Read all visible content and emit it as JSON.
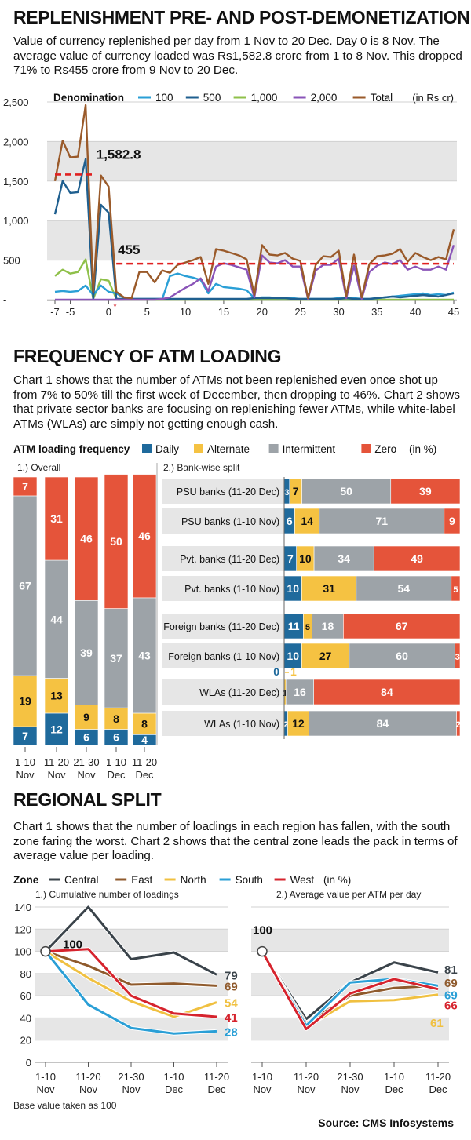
{
  "section1": {
    "title": "REPLENISHMENT PRE- AND POST-DEMONETIZATION",
    "description": "Value of currency replenished per day from 1 Nov to 20 Dec. Day 0 is 8 Nov. The average value of currency loaded was Rs1,582.8 crore from 1 to 8 Nov. This dropped 71% to Rs455 crore from 9 Nov to 20 Dec."
  },
  "section2": {
    "title": "FREQUENCY OF ATM LOADING",
    "description": "Chart 1 shows that the number of ATMs not been replenished even once shot up from 7% to 50% till the first week of December, then dropping to 46%. Chart 2 shows that private sector banks are focusing on replenishing fewer ATMs, while white-label ATMs (WLAs) are simply not getting enough cash."
  },
  "section3": {
    "title": "REGIONAL SPLIT",
    "description": "Chart 1 shows that the number of loadings in each region has fallen, with the south zone faring the worst.  Chart 2 shows that the central zone leads the pack in terms of average value per loading."
  },
  "source": "Source: CMS Infosystems",
  "colors": {
    "d100": "#2a9fd6",
    "d500": "#1f5f8f",
    "d1000": "#8fc04a",
    "d2000": "#8a54b8",
    "total": "#9a5a2a",
    "daily": "#1f6a9c",
    "alternate": "#f5c242",
    "intermittent": "#9da3a8",
    "zero": "#e5543a",
    "central": "#3a434a",
    "east": "#8f5a2c",
    "north": "#f0c040",
    "south": "#2a9fd6",
    "west": "#d6232d"
  },
  "chart_data": [
    {
      "type": "line",
      "legend_title": "Denomination",
      "unit_note": "(in Rs cr)",
      "x": [
        -7,
        -6,
        -5,
        -4,
        -3,
        -2,
        -1,
        0,
        1,
        2,
        3,
        4,
        5,
        6,
        7,
        8,
        9,
        10,
        11,
        12,
        13,
        14,
        15,
        16,
        17,
        18,
        19,
        20,
        21,
        22,
        23,
        24,
        25,
        26,
        27,
        28,
        29,
        30,
        31,
        32,
        33,
        34,
        35,
        36,
        37,
        38,
        39,
        40,
        41,
        42,
        43,
        44,
        45
      ],
      "x_ticks": [
        -7,
        -5,
        0,
        5,
        10,
        15,
        20,
        25,
        30,
        35,
        40,
        45
      ],
      "x_tick_labels": [
        "-7",
        "-5",
        "0",
        "5",
        "10",
        "15",
        "20",
        "25",
        "30",
        "35",
        "40",
        "45"
      ],
      "ylim": [
        0,
        2500
      ],
      "y_ticks": [
        0,
        500,
        1000,
        1500,
        2000,
        2500
      ],
      "y_tick_labels": [
        "-",
        "500",
        "1,000",
        "1,500",
        "2,000",
        "2,500"
      ],
      "series": [
        {
          "name": "100",
          "key": "d100",
          "values": [
            100,
            110,
            100,
            110,
            180,
            60,
            180,
            100,
            80,
            20,
            10,
            10,
            10,
            10,
            10,
            300,
            330,
            300,
            280,
            250,
            80,
            200,
            160,
            150,
            140,
            120,
            20,
            30,
            30,
            20,
            20,
            20,
            10,
            10,
            10,
            10,
            10,
            20,
            20,
            20,
            10,
            10,
            20,
            30,
            40,
            50,
            60,
            70,
            80,
            60,
            70,
            60,
            90
          ]
        },
        {
          "name": "500",
          "key": "d500",
          "values": [
            1080,
            1500,
            1350,
            1360,
            1780,
            10,
            1200,
            1100,
            10,
            10,
            10,
            10,
            10,
            10,
            10,
            10,
            10,
            10,
            10,
            10,
            10,
            10,
            10,
            10,
            10,
            10,
            20,
            20,
            20,
            20,
            20,
            10,
            10,
            10,
            10,
            10,
            10,
            10,
            20,
            10,
            10,
            10,
            20,
            30,
            40,
            30,
            40,
            50,
            60,
            50,
            40,
            60,
            80
          ]
        },
        {
          "name": "1,000",
          "key": "d1000",
          "values": [
            300,
            380,
            330,
            350,
            510,
            10,
            260,
            240,
            10,
            0,
            0,
            0,
            0,
            0,
            0,
            0,
            0,
            0,
            0,
            0,
            0,
            0,
            0,
            0,
            0,
            0,
            0,
            0,
            0,
            0,
            0,
            0,
            0,
            0,
            0,
            0,
            0,
            0,
            0,
            0,
            0,
            0,
            0,
            0,
            0,
            0,
            0,
            0,
            0,
            0,
            0,
            0,
            0
          ]
        },
        {
          "name": "2,000",
          "key": "d2000",
          "values": [
            0,
            0,
            0,
            0,
            0,
            0,
            0,
            0,
            0,
            0,
            0,
            0,
            0,
            0,
            10,
            30,
            90,
            150,
            200,
            270,
            110,
            420,
            460,
            440,
            410,
            380,
            30,
            560,
            470,
            460,
            500,
            420,
            420,
            10,
            370,
            440,
            440,
            520,
            20,
            430,
            10,
            350,
            430,
            470,
            450,
            500,
            380,
            420,
            380,
            380,
            420,
            380,
            690
          ]
        },
        {
          "name": "Total",
          "key": "total",
          "values": [
            1500,
            2010,
            1800,
            1810,
            2460,
            100,
            1570,
            1430,
            100,
            30,
            20,
            350,
            350,
            220,
            370,
            340,
            440,
            470,
            500,
            540,
            200,
            640,
            620,
            590,
            560,
            510,
            60,
            690,
            570,
            560,
            590,
            520,
            490,
            20,
            440,
            550,
            540,
            620,
            50,
            570,
            30,
            450,
            550,
            560,
            580,
            640,
            480,
            590,
            540,
            500,
            540,
            510,
            890
          ]
        }
      ],
      "annotations": [
        {
          "label": "1,582.8",
          "value": 1582.8,
          "x_from": -7,
          "x_to": -2
        },
        {
          "label": "455",
          "value": 455,
          "x_from": 1,
          "x_to": 45
        }
      ]
    },
    {
      "type": "bar",
      "title": "1.) Overall",
      "legend_title": "ATM loading frequency",
      "unit_note": "(in %)",
      "categories": [
        "1-10 Nov",
        "11-20 Nov",
        "21-30 Nov",
        "1-10 Dec",
        "11-20 Dec"
      ],
      "category_lines": [
        [
          "1-10",
          "Nov"
        ],
        [
          "11-20",
          "Nov"
        ],
        [
          "21-30",
          "Nov"
        ],
        [
          "1-10",
          "Dec"
        ],
        [
          "11-20",
          "Dec"
        ]
      ],
      "series": [
        {
          "name": "Daily",
          "key": "daily",
          "values": [
            7,
            12,
            6,
            6,
            4
          ]
        },
        {
          "name": "Alternate",
          "key": "alternate",
          "values": [
            19,
            13,
            9,
            8,
            8
          ]
        },
        {
          "name": "Intermittent",
          "key": "intermittent",
          "values": [
            67,
            44,
            39,
            37,
            43
          ]
        },
        {
          "name": "Zero",
          "key": "zero",
          "values": [
            7,
            31,
            46,
            50,
            46
          ]
        }
      ]
    },
    {
      "type": "bar",
      "title": "2.) Bank-wise split",
      "orientation": "horizontal",
      "categories": [
        "PSU banks (11-20 Dec)",
        "PSU banks (1-10 Nov)",
        "Pvt. banks (11-20 Dec)",
        "Pvt. banks (1-10 Nov)",
        "Foreign banks (11-20 Dec)",
        "Foreign banks (1-10 Nov)",
        "WLAs (11-20 Dec)",
        "WLAs (1-10 Nov)"
      ],
      "series": [
        {
          "name": "Daily",
          "key": "daily",
          "values": [
            3,
            6,
            7,
            10,
            11,
            10,
            0,
            2
          ]
        },
        {
          "name": "Alternate",
          "key": "alternate",
          "values": [
            7,
            14,
            10,
            31,
            5,
            27,
            1,
            12
          ]
        },
        {
          "name": "Intermittent",
          "key": "intermittent",
          "values": [
            50,
            71,
            34,
            54,
            18,
            60,
            16,
            84
          ]
        },
        {
          "name": "Zero",
          "key": "zero",
          "values": [
            39,
            9,
            49,
            5,
            67,
            3,
            84,
            2
          ]
        }
      ],
      "zero_row_labels": [
        "0",
        "1"
      ]
    },
    {
      "type": "line",
      "title": "1.) Cumulative number of loadings",
      "legend_title": "Zone",
      "unit_note": "(in %)",
      "categories": [
        "1-10 Nov",
        "11-20 Nov",
        "21-30 Nov",
        "1-10 Dec",
        "11-20 Dec"
      ],
      "category_lines": [
        [
          "1-10",
          "Nov"
        ],
        [
          "11-20",
          "Nov"
        ],
        [
          "21-30",
          "Nov"
        ],
        [
          "1-10",
          "Dec"
        ],
        [
          "11-20",
          "Dec"
        ]
      ],
      "ylim": [
        0,
        140
      ],
      "y_ticks": [
        0,
        20,
        40,
        60,
        80,
        100,
        120,
        140
      ],
      "y_tick_labels": [
        "0",
        "20",
        "40",
        "60",
        "80",
        "100",
        "120",
        "140"
      ],
      "start_label": "100",
      "series": [
        {
          "name": "Central",
          "key": "central",
          "values": [
            100,
            140,
            93,
            99,
            79
          ]
        },
        {
          "name": "East",
          "key": "east",
          "values": [
            100,
            87,
            70,
            71,
            69
          ]
        },
        {
          "name": "North",
          "key": "north",
          "values": [
            100,
            76,
            55,
            41,
            54
          ]
        },
        {
          "name": "South",
          "key": "south",
          "values": [
            100,
            52,
            31,
            26,
            28
          ]
        },
        {
          "name": "West",
          "key": "west",
          "values": [
            100,
            102,
            60,
            44,
            41
          ]
        }
      ],
      "end_labels": [
        {
          "key": "central",
          "text": "79"
        },
        {
          "key": "east",
          "text": "69"
        },
        {
          "key": "north",
          "text": "54"
        },
        {
          "key": "west",
          "text": "41"
        },
        {
          "key": "south",
          "text": "28"
        }
      ],
      "footnote": "Base value taken as 100"
    },
    {
      "type": "line",
      "title": "2.) Average value per ATM per day",
      "categories": [
        "1-10 Nov",
        "11-20 Nov",
        "21-30 Nov",
        "1-10 Dec",
        "11-20 Dec"
      ],
      "category_lines": [
        [
          "1-10",
          "Nov"
        ],
        [
          "11-20",
          "Nov"
        ],
        [
          "21-30",
          "Nov"
        ],
        [
          "1-10",
          "Dec"
        ],
        [
          "11-20",
          "Dec"
        ]
      ],
      "ylim": [
        0,
        140
      ],
      "start_label": "100",
      "series": [
        {
          "name": "Central",
          "key": "central",
          "values": [
            100,
            39,
            72,
            90,
            81
          ]
        },
        {
          "name": "East",
          "key": "east",
          "values": [
            100,
            35,
            60,
            67,
            69
          ]
        },
        {
          "name": "North",
          "key": "north",
          "values": [
            100,
            32,
            55,
            56,
            61
          ]
        },
        {
          "name": "South",
          "key": "south",
          "values": [
            100,
            33,
            72,
            75,
            69
          ]
        },
        {
          "name": "West",
          "key": "west",
          "values": [
            100,
            30,
            62,
            75,
            66
          ]
        }
      ],
      "end_labels": [
        {
          "key": "central",
          "text": "81"
        },
        {
          "key": "east",
          "text": "69"
        },
        {
          "key": "south",
          "text": "69"
        },
        {
          "key": "west",
          "text": "66"
        },
        {
          "key": "north",
          "text": "61"
        }
      ]
    }
  ]
}
